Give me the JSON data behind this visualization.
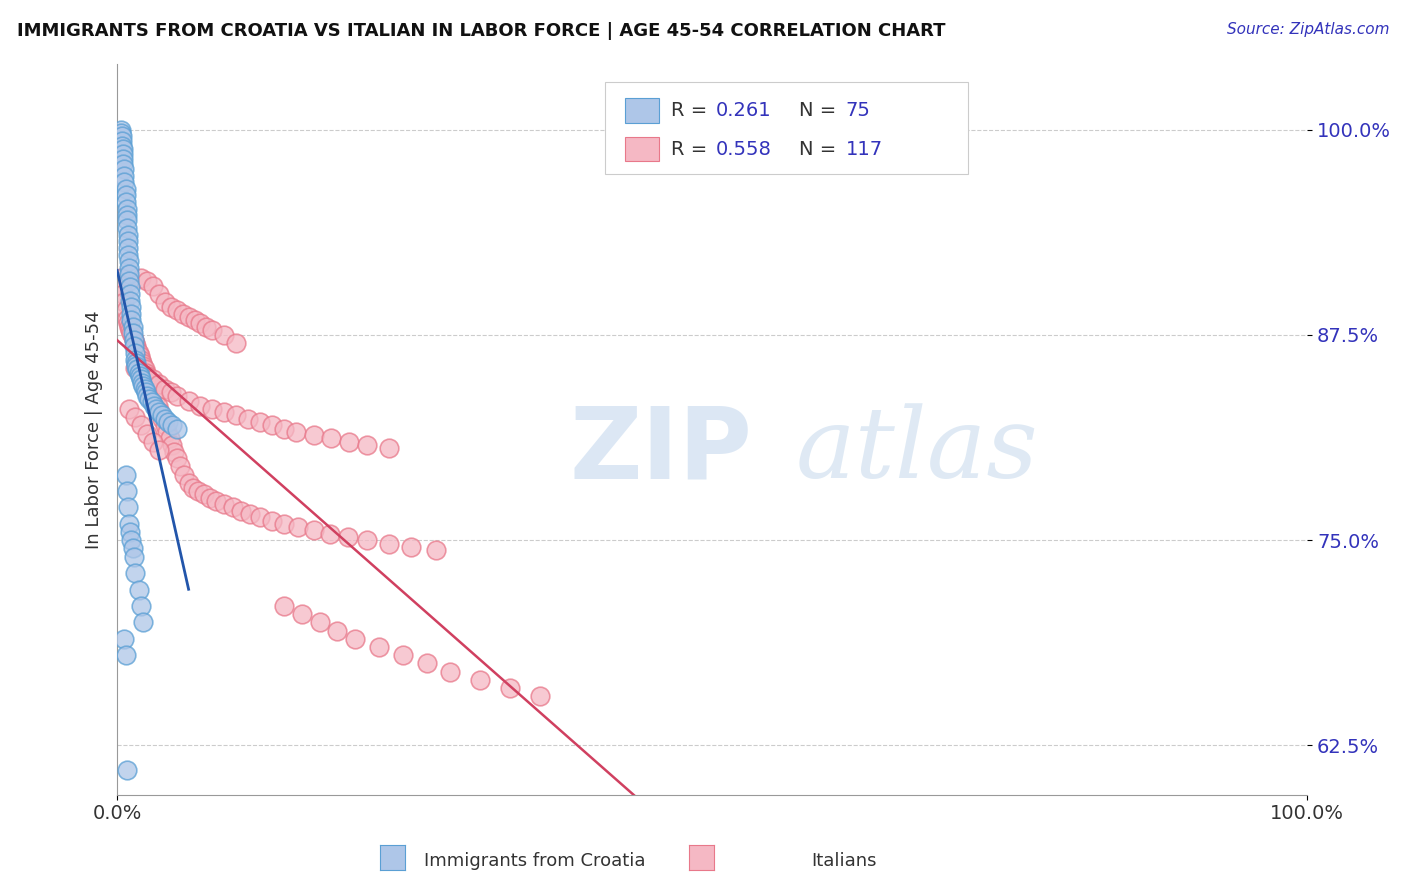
{
  "title": "IMMIGRANTS FROM CROATIA VS ITALIAN IN LABOR FORCE | AGE 45-54 CORRELATION CHART",
  "source_text": "Source: ZipAtlas.com",
  "ylabel": "In Labor Force | Age 45-54",
  "watermark_zip": "ZIP",
  "watermark_atlas": "atlas",
  "xlim": [
    0.0,
    1.0
  ],
  "ylim": [
    0.595,
    1.04
  ],
  "yticks": [
    0.625,
    0.75,
    0.875,
    1.0
  ],
  "ytick_labels": [
    "62.5%",
    "75.0%",
    "87.5%",
    "100.0%"
  ],
  "legend_r1": "0.261",
  "legend_n1": "75",
  "legend_r2": "0.558",
  "legend_n2": "117",
  "blue_fill": "#aec6e8",
  "blue_edge": "#5a9fd4",
  "pink_fill": "#f5b8c4",
  "pink_edge": "#e8788a",
  "trend_blue": "#2255aa",
  "trend_pink": "#d04060",
  "background": "#ffffff",
  "grid_color": "#cccccc",
  "title_color": "#111111",
  "source_color": "#3333bb",
  "ytick_color": "#3333bb",
  "legend_text_color": "#3333bb",
  "blue_x": [
    0.003,
    0.003,
    0.004,
    0.004,
    0.004,
    0.005,
    0.005,
    0.005,
    0.005,
    0.006,
    0.006,
    0.006,
    0.007,
    0.007,
    0.007,
    0.008,
    0.008,
    0.008,
    0.008,
    0.009,
    0.009,
    0.009,
    0.009,
    0.01,
    0.01,
    0.01,
    0.01,
    0.011,
    0.011,
    0.011,
    0.012,
    0.012,
    0.012,
    0.013,
    0.013,
    0.014,
    0.014,
    0.015,
    0.015,
    0.016,
    0.016,
    0.017,
    0.018,
    0.019,
    0.02,
    0.021,
    0.022,
    0.023,
    0.024,
    0.025,
    0.027,
    0.029,
    0.031,
    0.033,
    0.035,
    0.038,
    0.04,
    0.043,
    0.046,
    0.05,
    0.007,
    0.008,
    0.009,
    0.01,
    0.011,
    0.012,
    0.013,
    0.014,
    0.015,
    0.018,
    0.02,
    0.022,
    0.006,
    0.007,
    0.008
  ],
  "blue_y": [
    1.0,
    0.998,
    0.996,
    0.993,
    0.99,
    0.988,
    0.985,
    0.982,
    0.979,
    0.976,
    0.972,
    0.968,
    0.964,
    0.96,
    0.956,
    0.952,
    0.948,
    0.945,
    0.94,
    0.936,
    0.932,
    0.928,
    0.924,
    0.92,
    0.916,
    0.912,
    0.908,
    0.904,
    0.9,
    0.896,
    0.892,
    0.888,
    0.884,
    0.88,
    0.876,
    0.872,
    0.868,
    0.864,
    0.86,
    0.858,
    0.856,
    0.854,
    0.852,
    0.85,
    0.848,
    0.846,
    0.844,
    0.842,
    0.84,
    0.838,
    0.836,
    0.834,
    0.832,
    0.83,
    0.828,
    0.826,
    0.824,
    0.822,
    0.82,
    0.818,
    0.79,
    0.78,
    0.77,
    0.76,
    0.755,
    0.75,
    0.745,
    0.74,
    0.73,
    0.72,
    0.71,
    0.7,
    0.69,
    0.68,
    0.61
  ],
  "pink_x": [
    0.003,
    0.004,
    0.005,
    0.006,
    0.007,
    0.008,
    0.009,
    0.01,
    0.011,
    0.012,
    0.013,
    0.014,
    0.015,
    0.016,
    0.017,
    0.018,
    0.019,
    0.02,
    0.021,
    0.022,
    0.023,
    0.024,
    0.025,
    0.026,
    0.027,
    0.028,
    0.03,
    0.032,
    0.034,
    0.036,
    0.038,
    0.04,
    0.042,
    0.044,
    0.046,
    0.048,
    0.05,
    0.053,
    0.056,
    0.06,
    0.064,
    0.068,
    0.073,
    0.078,
    0.083,
    0.09,
    0.097,
    0.104,
    0.112,
    0.12,
    0.13,
    0.14,
    0.152,
    0.165,
    0.179,
    0.194,
    0.21,
    0.228,
    0.247,
    0.268,
    0.02,
    0.025,
    0.03,
    0.035,
    0.04,
    0.045,
    0.05,
    0.055,
    0.06,
    0.065,
    0.07,
    0.075,
    0.08,
    0.09,
    0.1,
    0.015,
    0.02,
    0.025,
    0.03,
    0.035,
    0.04,
    0.045,
    0.05,
    0.06,
    0.07,
    0.08,
    0.09,
    0.1,
    0.11,
    0.12,
    0.13,
    0.14,
    0.15,
    0.165,
    0.18,
    0.195,
    0.21,
    0.228,
    0.01,
    0.015,
    0.02,
    0.025,
    0.03,
    0.035,
    0.14,
    0.155,
    0.17,
    0.185,
    0.2,
    0.22,
    0.24,
    0.26,
    0.28,
    0.305,
    0.33,
    0.355
  ],
  "pink_y": [
    0.91,
    0.905,
    0.9,
    0.895,
    0.89,
    0.885,
    0.882,
    0.88,
    0.878,
    0.876,
    0.874,
    0.872,
    0.87,
    0.868,
    0.866,
    0.864,
    0.862,
    0.86,
    0.858,
    0.856,
    0.854,
    0.852,
    0.85,
    0.848,
    0.846,
    0.844,
    0.84,
    0.836,
    0.832,
    0.828,
    0.824,
    0.82,
    0.816,
    0.812,
    0.808,
    0.804,
    0.8,
    0.795,
    0.79,
    0.785,
    0.782,
    0.78,
    0.778,
    0.776,
    0.774,
    0.772,
    0.77,
    0.768,
    0.766,
    0.764,
    0.762,
    0.76,
    0.758,
    0.756,
    0.754,
    0.752,
    0.75,
    0.748,
    0.746,
    0.744,
    0.91,
    0.908,
    0.905,
    0.9,
    0.895,
    0.892,
    0.89,
    0.888,
    0.886,
    0.884,
    0.882,
    0.88,
    0.878,
    0.875,
    0.87,
    0.855,
    0.852,
    0.85,
    0.848,
    0.845,
    0.842,
    0.84,
    0.838,
    0.835,
    0.832,
    0.83,
    0.828,
    0.826,
    0.824,
    0.822,
    0.82,
    0.818,
    0.816,
    0.814,
    0.812,
    0.81,
    0.808,
    0.806,
    0.83,
    0.825,
    0.82,
    0.815,
    0.81,
    0.805,
    0.71,
    0.705,
    0.7,
    0.695,
    0.69,
    0.685,
    0.68,
    0.675,
    0.67,
    0.665,
    0.66,
    0.655
  ]
}
